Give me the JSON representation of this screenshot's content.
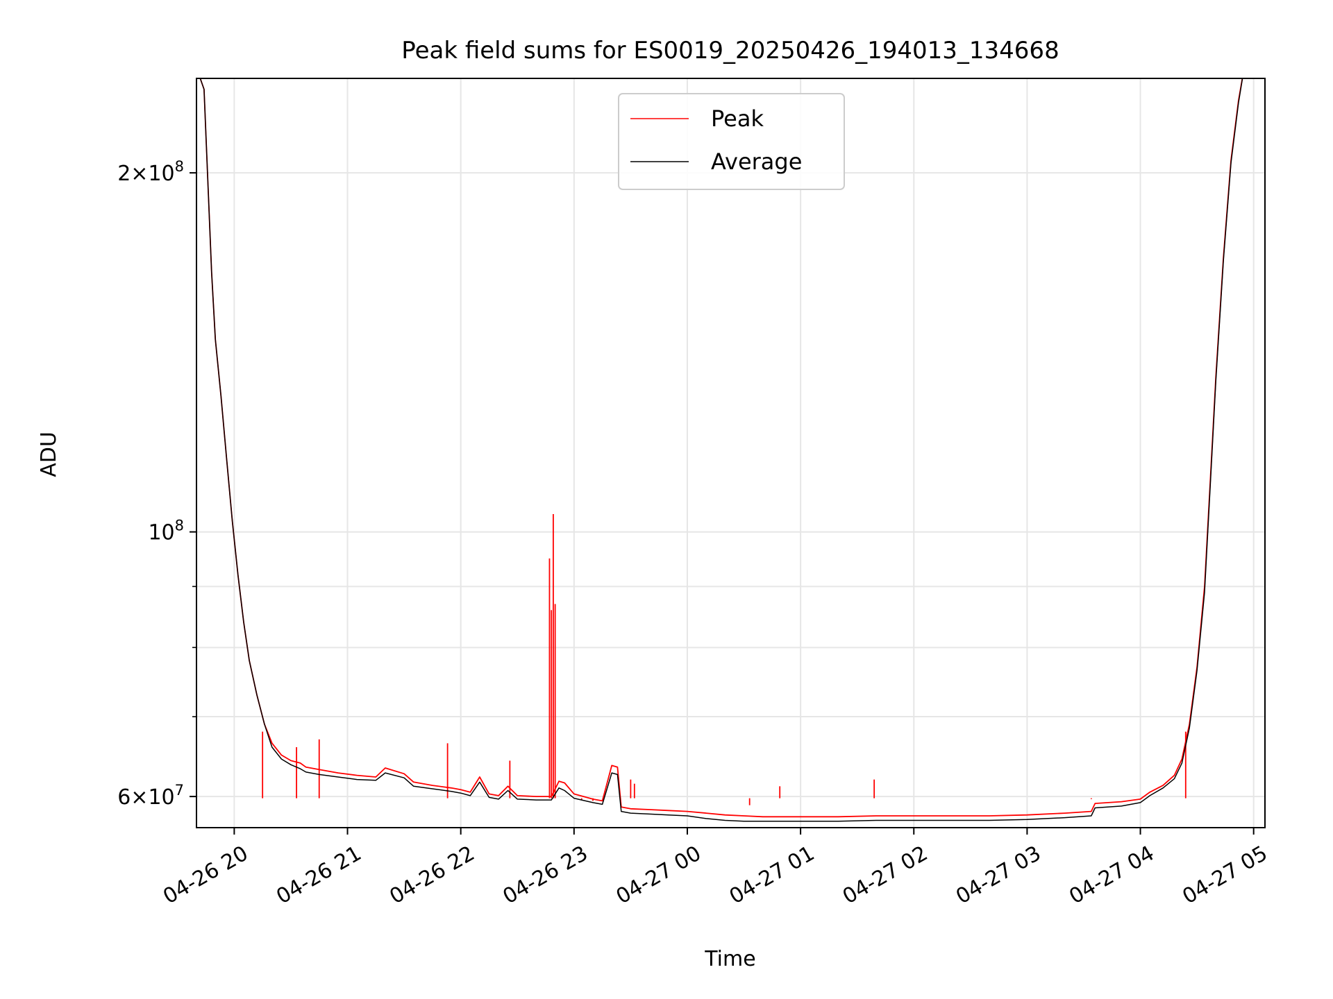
{
  "chart_data": {
    "type": "line",
    "title": "Peak field sums for ES0019_20250426_194013_134668",
    "xlabel": "Time",
    "ylabel": "ADU",
    "y_scale": "log",
    "ylim": [
      56500000,
      240000000
    ],
    "xlim": [
      "2025-04-26 19:40",
      "2025-04-27 05:06"
    ],
    "grid": true,
    "legend_position": "top-center",
    "x_ticks": [
      {
        "t": "2025-04-26 20:00",
        "label": "04-26 20"
      },
      {
        "t": "2025-04-26 21:00",
        "label": "04-26 21"
      },
      {
        "t": "2025-04-26 22:00",
        "label": "04-26 22"
      },
      {
        "t": "2025-04-26 23:00",
        "label": "04-26 23"
      },
      {
        "t": "2025-04-27 00:00",
        "label": "04-27 00"
      },
      {
        "t": "2025-04-27 01:00",
        "label": "04-27 01"
      },
      {
        "t": "2025-04-27 02:00",
        "label": "04-27 02"
      },
      {
        "t": "2025-04-27 03:00",
        "label": "04-27 03"
      },
      {
        "t": "2025-04-27 04:00",
        "label": "04-27 04"
      },
      {
        "t": "2025-04-27 05:00",
        "label": "04-27 05"
      }
    ],
    "y_ticks": [
      {
        "value": 60000000,
        "mantissa": "6",
        "exponent": "7"
      },
      {
        "value": 100000000,
        "mantissa": "",
        "exponent": "8"
      },
      {
        "value": 200000000,
        "mantissa": "2",
        "exponent": "8"
      }
    ],
    "y_minor_ticks": [
      70000000,
      80000000,
      90000000
    ],
    "times_x": [
      "2025-04-26 19:40",
      "2025-04-26 19:44",
      "2025-04-26 19:48",
      "2025-04-26 19:50",
      "2025-04-26 19:53",
      "2025-04-26 19:56",
      "2025-04-26 19:59",
      "2025-04-26 20:02",
      "2025-04-26 20:05",
      "2025-04-26 20:08",
      "2025-04-26 20:12",
      "2025-04-26 20:16",
      "2025-04-26 20:20",
      "2025-04-26 20:25",
      "2025-04-26 20:30",
      "2025-04-26 20:35",
      "2025-04-26 20:38",
      "2025-04-26 20:45",
      "2025-04-26 20:55",
      "2025-04-26 21:05",
      "2025-04-26 21:15",
      "2025-04-26 21:20",
      "2025-04-26 21:30",
      "2025-04-26 21:35",
      "2025-04-26 21:45",
      "2025-04-26 21:55",
      "2025-04-26 22:00",
      "2025-04-26 22:05",
      "2025-04-26 22:10",
      "2025-04-26 22:15",
      "2025-04-26 22:20",
      "2025-04-26 22:25",
      "2025-04-26 22:30",
      "2025-04-26 22:40",
      "2025-04-26 22:48",
      "2025-04-26 22:52",
      "2025-04-26 22:55",
      "2025-04-26 23:00",
      "2025-04-26 23:10",
      "2025-04-26 23:15",
      "2025-04-26 23:20",
      "2025-04-26 23:23",
      "2025-04-26 23:25",
      "2025-04-26 23:30",
      "2025-04-26 23:40",
      "2025-04-26 23:50",
      "2025-04-27 00:00",
      "2025-04-27 00:10",
      "2025-04-27 00:20",
      "2025-04-27 00:30",
      "2025-04-27 00:40",
      "2025-04-27 00:50",
      "2025-04-27 01:00",
      "2025-04-27 01:20",
      "2025-04-27 01:40",
      "2025-04-27 02:00",
      "2025-04-27 02:20",
      "2025-04-27 02:40",
      "2025-04-27 03:00",
      "2025-04-27 03:20",
      "2025-04-27 03:34",
      "2025-04-27 03:36",
      "2025-04-27 03:50",
      "2025-04-27 04:00",
      "2025-04-27 04:05",
      "2025-04-27 04:12",
      "2025-04-27 04:18",
      "2025-04-27 04:22",
      "2025-04-27 04:26",
      "2025-04-27 04:30",
      "2025-04-27 04:34",
      "2025-04-27 04:37",
      "2025-04-27 04:40",
      "2025-04-27 04:44",
      "2025-04-27 04:48",
      "2025-04-27 04:52",
      "2025-04-27 04:55"
    ],
    "series": [
      {
        "name": "Peak",
        "color": "#ff0000",
        "values": [
          245000000,
          235000000,
          165000000,
          145000000,
          130000000,
          115000000,
          102000000,
          92000000,
          84000000,
          78000000,
          73000000,
          69000000,
          66500000,
          65000000,
          64300000,
          64000000,
          63500000,
          63200000,
          62800000,
          62500000,
          62300000,
          63400000,
          62700000,
          61700000,
          61300000,
          61000000,
          60800000,
          60500000,
          62300000,
          60300000,
          60100000,
          61200000,
          60100000,
          60000000,
          60000000,
          61800000,
          61600000,
          60300000,
          59700000,
          59500000,
          63700000,
          63500000,
          58800000,
          58600000,
          58500000,
          58400000,
          58300000,
          58100000,
          57900000,
          57800000,
          57700000,
          57700000,
          57700000,
          57700000,
          57800000,
          57800000,
          57800000,
          57800000,
          57900000,
          58100000,
          58300000,
          59200000,
          59400000,
          59700000,
          60500000,
          61300000,
          62500000,
          64500000,
          69000000,
          77000000,
          90000000,
          110000000,
          135000000,
          170000000,
          205000000,
          230000000,
          245000000
        ]
      },
      {
        "name": "Average",
        "color": "#000000",
        "values": [
          245000000,
          235000000,
          165000000,
          145000000,
          130000000,
          115000000,
          102000000,
          92000000,
          84000000,
          78000000,
          73000000,
          69000000,
          66000000,
          64500000,
          63800000,
          63300000,
          62900000,
          62600000,
          62300000,
          62000000,
          61900000,
          62800000,
          62200000,
          61200000,
          60900000,
          60600000,
          60400000,
          60100000,
          61700000,
          59900000,
          59700000,
          60700000,
          59700000,
          59600000,
          59600000,
          61000000,
          60700000,
          59800000,
          59300000,
          59100000,
          62800000,
          62600000,
          58300000,
          58100000,
          58000000,
          57900000,
          57800000,
          57500000,
          57300000,
          57200000,
          57200000,
          57200000,
          57200000,
          57200000,
          57300000,
          57300000,
          57300000,
          57300000,
          57400000,
          57600000,
          57800000,
          58700000,
          58900000,
          59300000,
          60100000,
          61000000,
          62100000,
          64000000,
          68500000,
          76500000,
          89000000,
          109000000,
          134000000,
          169000000,
          204000000,
          229000000,
          245000000
        ]
      }
    ],
    "spikes": [
      {
        "t": "2025-04-26 20:15",
        "value": 68000000
      },
      {
        "t": "2025-04-26 20:33",
        "value": 66000000
      },
      {
        "t": "2025-04-26 20:45",
        "value": 67000000
      },
      {
        "t": "2025-04-26 21:53",
        "value": 66500000
      },
      {
        "t": "2025-04-26 22:26",
        "value": 64300000
      },
      {
        "t": "2025-04-26 22:47",
        "value": 95000000
      },
      {
        "t": "2025-04-26 22:48",
        "value": 86000000
      },
      {
        "t": "2025-04-26 22:49",
        "value": 103500000
      },
      {
        "t": "2025-04-26 22:50",
        "value": 87000000
      },
      {
        "t": "2025-04-26 23:04",
        "value": 59600000
      },
      {
        "t": "2025-04-26 23:10",
        "value": 59500000
      },
      {
        "t": "2025-04-26 23:30",
        "value": 62000000
      },
      {
        "t": "2025-04-26 23:32",
        "value": 61500000
      },
      {
        "t": "2025-04-27 00:33",
        "value": 59000000
      },
      {
        "t": "2025-04-27 00:49",
        "value": 61200000
      },
      {
        "t": "2025-04-27 01:39",
        "value": 62000000
      },
      {
        "t": "2025-04-27 03:34",
        "value": 59700000
      },
      {
        "t": "2025-04-27 04:24",
        "value": 68000000
      }
    ]
  }
}
